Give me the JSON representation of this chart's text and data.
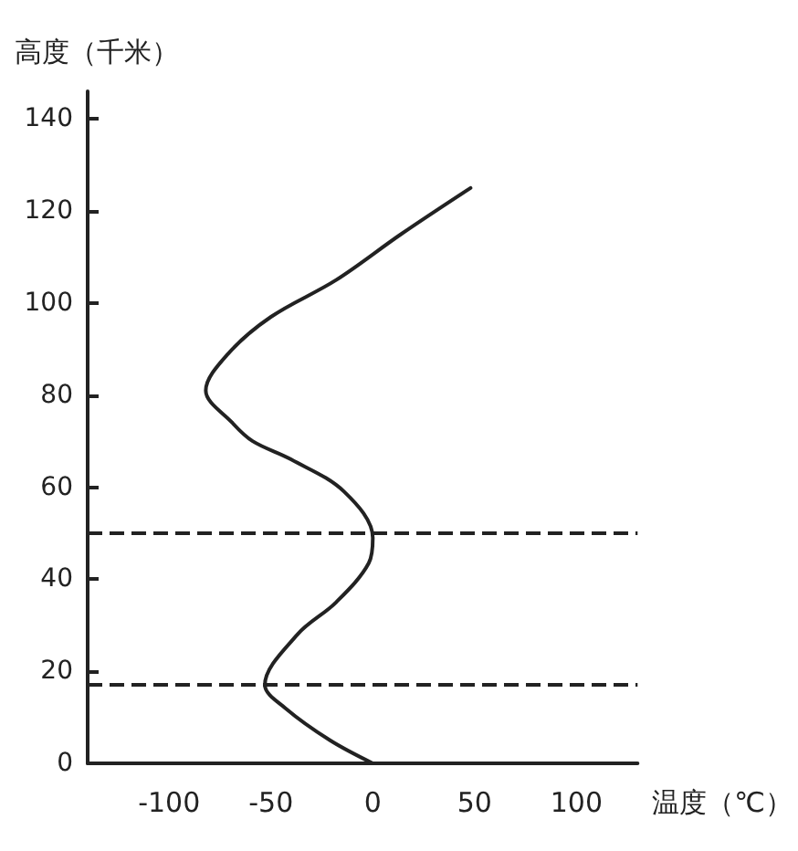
{
  "chart_data": {
    "type": "line",
    "xlabel": "温度（℃）",
    "ylabel": "高度（千米）",
    "xlim": [
      -140,
      130
    ],
    "xticks": [
      -100,
      -50,
      0,
      50,
      100
    ],
    "ylim": [
      0,
      146
    ],
    "yticks": [
      0,
      20,
      40,
      60,
      80,
      100,
      120,
      140
    ],
    "series": [
      {
        "color": "#222222",
        "x": [
          0,
          -21,
          -43,
          -53,
          -37,
          -18,
          -2,
          0,
          -14,
          -40,
          -59,
          -69,
          -82,
          -71,
          -50,
          -18,
          14,
          48
        ],
        "values": [
          0,
          5,
          12,
          17,
          28,
          35,
          43.5,
          49,
          59,
          66,
          70,
          74,
          81,
          89,
          97,
          105,
          115,
          125
        ]
      }
    ],
    "ref_lines": [
      {
        "axis": "y",
        "value": 17,
        "line_style": "dashed"
      },
      {
        "axis": "y",
        "value": 50,
        "line_style": "dashed"
      }
    ],
    "grid": false,
    "marker": "none",
    "line_style": "solid"
  }
}
